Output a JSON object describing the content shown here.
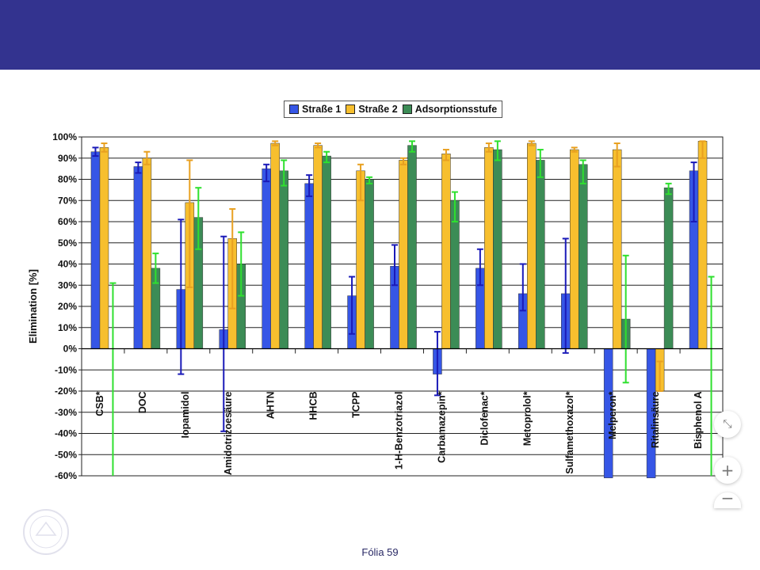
{
  "chart_data": {
    "type": "bar",
    "ylabel": "Elimination [%]",
    "ylim": [
      -60,
      100
    ],
    "ytick_labels": [
      "-60%",
      "-50%",
      "-40%",
      "-30%",
      "-20%",
      "-10%",
      "0%",
      "10%",
      "20%",
      "30%",
      "40%",
      "50%",
      "60%",
      "70%",
      "80%",
      "90%",
      "100%"
    ],
    "grid": true,
    "legend_position": "top",
    "categories": [
      "CSB*",
      "DOC",
      "Iopamidol",
      "Amidotrizoesäure",
      "AHTN",
      "HHCB",
      "TCPP",
      "1-H-Benzotriazol",
      "Carbamazepin*",
      "Diclofenac*",
      "Metoprolol*",
      "Sulfamethoxazol*",
      "Melperon*",
      "Ritalinsäure",
      "Bisphenol A"
    ],
    "series": [
      {
        "name": "Straße 1",
        "color": "#3656e6",
        "err_color": "#1a1ab8",
        "values": [
          93,
          86,
          28,
          9,
          85,
          78,
          25,
          39,
          -12,
          38,
          26,
          26,
          -61,
          -61,
          84
        ],
        "err_low": [
          91,
          83,
          -12,
          -39,
          79,
          72,
          7,
          30,
          -22,
          30,
          18,
          -2,
          null,
          null,
          60
        ],
        "err_high": [
          95,
          88,
          61,
          53,
          87,
          82,
          34,
          49,
          8,
          47,
          40,
          52,
          null,
          null,
          88
        ]
      },
      {
        "name": "Straße 2",
        "color": "#f7bf2e",
        "err_color": "#e8a020",
        "values": [
          95,
          90,
          69,
          52,
          97,
          96,
          84,
          89,
          92,
          95,
          97,
          94,
          94,
          -20,
          98
        ],
        "err_low": [
          93,
          87,
          29,
          19,
          96,
          95,
          70,
          87,
          89,
          93,
          96,
          93,
          86,
          -20,
          90
        ],
        "err_high": [
          97,
          93,
          89,
          66,
          98,
          97,
          87,
          90,
          94,
          97,
          98,
          95,
          97,
          -6,
          98
        ]
      },
      {
        "name": "Adsorptionsstufe",
        "color": "#3c8c56",
        "err_color": "#2ee02e",
        "values": [
          null,
          38,
          62,
          40,
          84,
          91,
          80,
          96,
          70,
          94,
          89,
          87,
          14,
          76,
          null
        ],
        "err_low": [
          null,
          31,
          47,
          25,
          77,
          88,
          78,
          93,
          60,
          89,
          81,
          78,
          -16,
          73,
          null
        ],
        "err_high": [
          31,
          45,
          76,
          55,
          89,
          93,
          81,
          98,
          74,
          98,
          94,
          89,
          44,
          78,
          34
        ]
      }
    ]
  },
  "footer": {
    "slide_label": "Fólia 59"
  },
  "controls": {
    "fullscreen_glyph": "⤡",
    "zoom_in_glyph": "+",
    "zoom_out_glyph": "−"
  },
  "colors": {
    "header_bar": "#33338f",
    "grid": "#222222"
  },
  "icons": {
    "fullscreen": "collapse-arrows-icon",
    "zoom_in": "plus-icon",
    "zoom_out": "minus-icon",
    "logo": "university-seal-icon"
  }
}
